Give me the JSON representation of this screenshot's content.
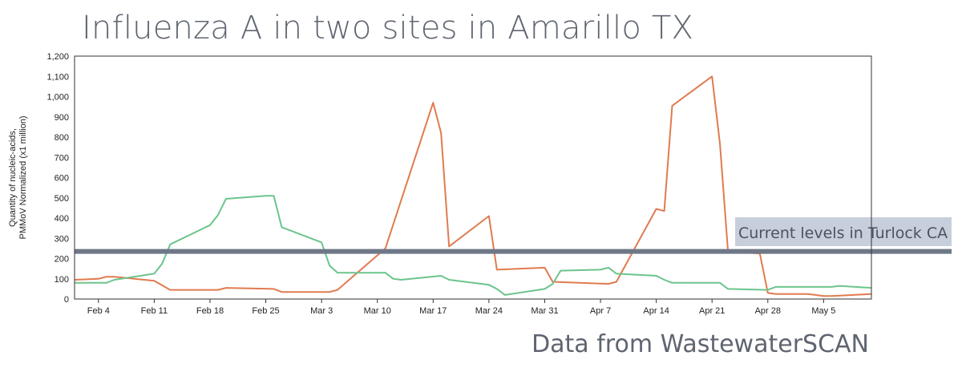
{
  "title": "Influenza A in two sites in Amarillo TX",
  "source": "Data from WastewaterSCAN",
  "chart_data": {
    "type": "line",
    "title": "Influenza A in two sites in Amarillo TX",
    "ylabel": "Quantity of nucleic-acids,\nPMMoV Normalized (x1 million)",
    "xlabel": "",
    "ylim": [
      0,
      1200
    ],
    "yticks": [
      {
        "v": 0,
        "label": "0"
      },
      {
        "v": 100,
        "label": "100"
      },
      {
        "v": 200,
        "label": "200"
      },
      {
        "v": 300,
        "label": "300"
      },
      {
        "v": 400,
        "label": "400"
      },
      {
        "v": 500,
        "label": "500"
      },
      {
        "v": 600,
        "label": "600"
      },
      {
        "v": 700,
        "label": "700"
      },
      {
        "v": 800,
        "label": "800"
      },
      {
        "v": 900,
        "label": "900"
      },
      {
        "v": 1000,
        "label": "1,000"
      },
      {
        "v": 1100,
        "label": "1,100"
      },
      {
        "v": 1200,
        "label": "1,200"
      }
    ],
    "xlim": [
      "2024-02-01",
      "2024-05-11"
    ],
    "xticks": [
      {
        "date": "2024-02-04",
        "label": "Feb 4"
      },
      {
        "date": "2024-02-11",
        "label": "Feb 11"
      },
      {
        "date": "2024-02-18",
        "label": "Feb 18"
      },
      {
        "date": "2024-02-25",
        "label": "Feb 25"
      },
      {
        "date": "2024-03-03",
        "label": "Mar 3"
      },
      {
        "date": "2024-03-10",
        "label": "Mar 10"
      },
      {
        "date": "2024-03-17",
        "label": "Mar 17"
      },
      {
        "date": "2024-03-24",
        "label": "Mar 24"
      },
      {
        "date": "2024-03-31",
        "label": "Mar 31"
      },
      {
        "date": "2024-04-07",
        "label": "Apr 7"
      },
      {
        "date": "2024-04-14",
        "label": "Apr 14"
      },
      {
        "date": "2024-04-21",
        "label": "Apr 21"
      },
      {
        "date": "2024-04-28",
        "label": "Apr 28"
      },
      {
        "date": "2024-05-05",
        "label": "May 5"
      }
    ],
    "grid": false,
    "reference_line": {
      "value": 235,
      "label": "Current levels in Turlock CA",
      "color": "#6e7887",
      "label_bg": "#c8cfdc"
    },
    "series": [
      {
        "color": "#e07b4f",
        "points": [
          [
            "2024-02-01",
            95
          ],
          [
            "2024-02-04",
            100
          ],
          [
            "2024-02-05",
            110
          ],
          [
            "2024-02-06",
            110
          ],
          [
            "2024-02-11",
            90
          ],
          [
            "2024-02-13",
            45
          ],
          [
            "2024-02-19",
            45
          ],
          [
            "2024-02-20",
            55
          ],
          [
            "2024-02-26",
            50
          ],
          [
            "2024-02-27",
            35
          ],
          [
            "2024-03-04",
            35
          ],
          [
            "2024-03-05",
            45
          ],
          [
            "2024-03-11",
            250
          ],
          [
            "2024-03-17",
            970
          ],
          [
            "2024-03-18",
            820
          ],
          [
            "2024-03-19",
            260
          ],
          [
            "2024-03-24",
            410
          ],
          [
            "2024-03-25",
            145
          ],
          [
            "2024-03-31",
            155
          ],
          [
            "2024-04-01",
            85
          ],
          [
            "2024-04-08",
            75
          ],
          [
            "2024-04-09",
            85
          ],
          [
            "2024-04-14",
            445
          ],
          [
            "2024-04-15",
            435
          ],
          [
            "2024-04-16",
            955
          ],
          [
            "2024-04-21",
            1100
          ],
          [
            "2024-04-22",
            765
          ],
          [
            "2024-04-23",
            235
          ],
          [
            "2024-04-27",
            225
          ],
          [
            "2024-04-28",
            30
          ],
          [
            "2024-04-29",
            25
          ],
          [
            "2024-05-03",
            25
          ],
          [
            "2024-05-05",
            15
          ],
          [
            "2024-05-06",
            15
          ],
          [
            "2024-05-11",
            25
          ]
        ]
      },
      {
        "color": "#6cc48c",
        "points": [
          [
            "2024-02-01",
            80
          ],
          [
            "2024-02-05",
            80
          ],
          [
            "2024-02-06",
            95
          ],
          [
            "2024-02-11",
            125
          ],
          [
            "2024-02-12",
            175
          ],
          [
            "2024-02-13",
            270
          ],
          [
            "2024-02-18",
            365
          ],
          [
            "2024-02-19",
            415
          ],
          [
            "2024-02-20",
            495
          ],
          [
            "2024-02-25",
            510
          ],
          [
            "2024-02-26",
            510
          ],
          [
            "2024-02-27",
            355
          ],
          [
            "2024-03-03",
            280
          ],
          [
            "2024-03-04",
            165
          ],
          [
            "2024-03-05",
            130
          ],
          [
            "2024-03-11",
            130
          ],
          [
            "2024-03-12",
            100
          ],
          [
            "2024-03-13",
            95
          ],
          [
            "2024-03-18",
            115
          ],
          [
            "2024-03-19",
            95
          ],
          [
            "2024-03-24",
            70
          ],
          [
            "2024-03-25",
            50
          ],
          [
            "2024-03-26",
            20
          ],
          [
            "2024-03-31",
            50
          ],
          [
            "2024-04-01",
            75
          ],
          [
            "2024-04-02",
            140
          ],
          [
            "2024-04-07",
            145
          ],
          [
            "2024-04-08",
            155
          ],
          [
            "2024-04-09",
            125
          ],
          [
            "2024-04-14",
            115
          ],
          [
            "2024-04-15",
            95
          ],
          [
            "2024-04-16",
            80
          ],
          [
            "2024-04-22",
            80
          ],
          [
            "2024-04-23",
            50
          ],
          [
            "2024-04-28",
            45
          ],
          [
            "2024-04-29",
            60
          ],
          [
            "2024-05-06",
            60
          ],
          [
            "2024-05-07",
            65
          ],
          [
            "2024-05-11",
            55
          ]
        ]
      }
    ]
  }
}
